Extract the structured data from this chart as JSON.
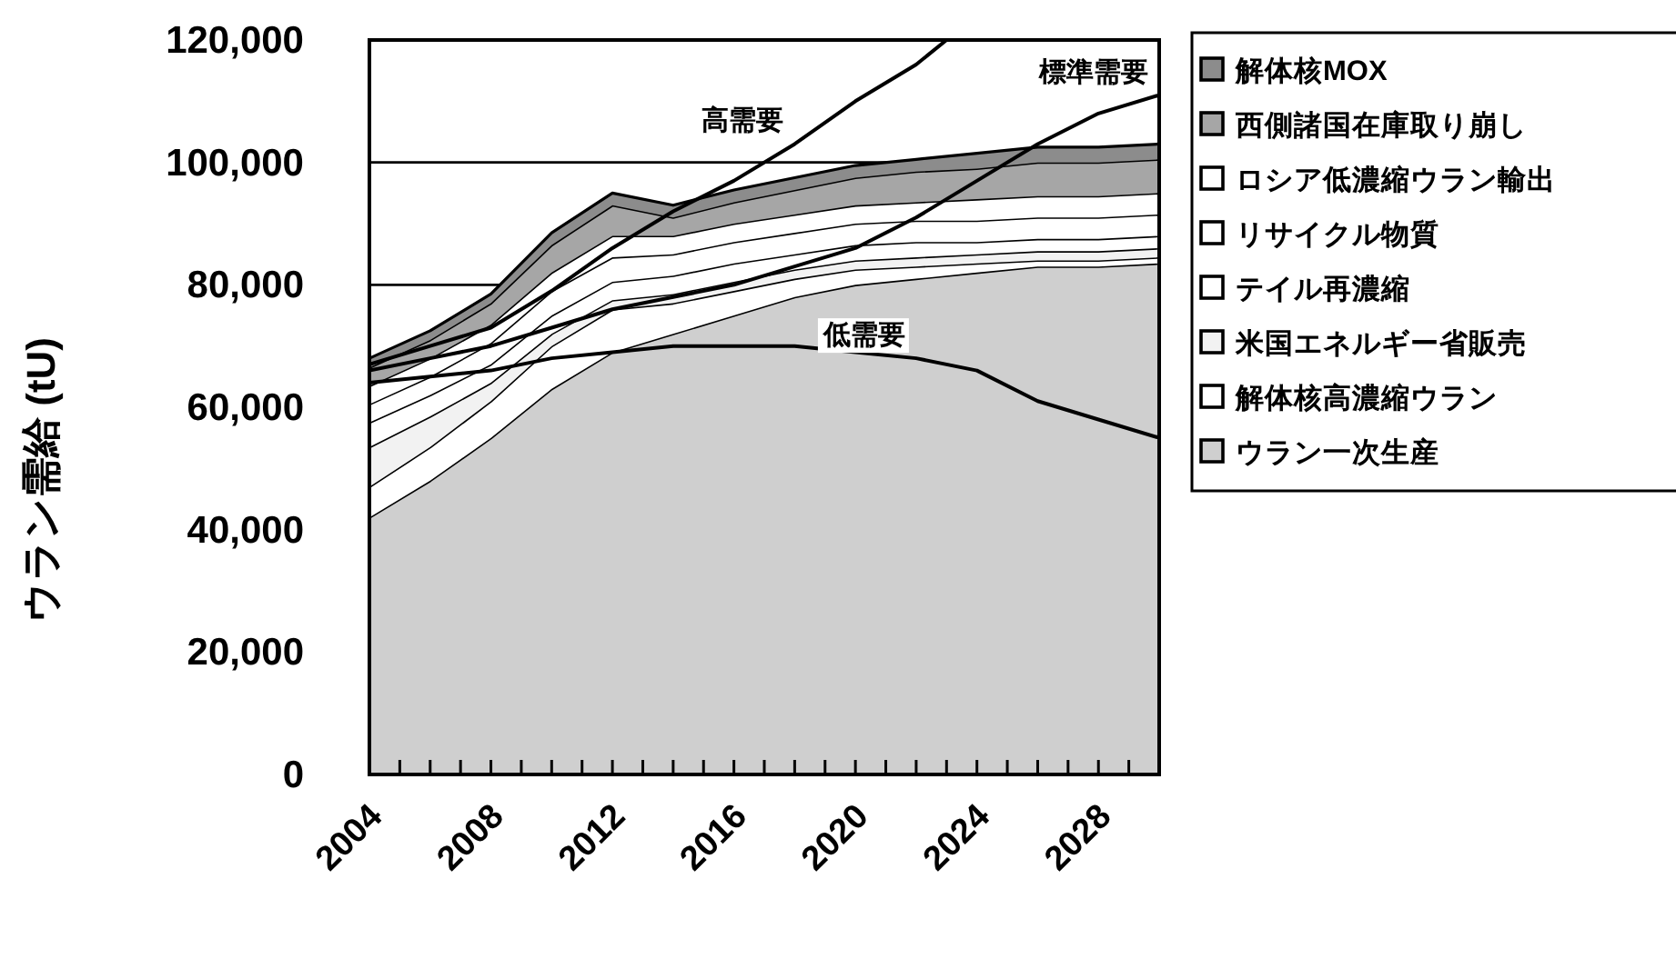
{
  "chart_data": {
    "type": "area",
    "stacked": true,
    "ylabel": "ウラン需給 (tU)",
    "grid": "y",
    "legend": "right",
    "xlim": [
      2004,
      2030
    ],
    "xticks": [
      {
        "value": 2004,
        "label": "2004"
      },
      {
        "value": 2005,
        "label": null
      },
      {
        "value": 2006,
        "label": null
      },
      {
        "value": 2007,
        "label": null
      },
      {
        "value": 2008,
        "label": "2008"
      },
      {
        "value": 2009,
        "label": null
      },
      {
        "value": 2010,
        "label": null
      },
      {
        "value": 2011,
        "label": null
      },
      {
        "value": 2012,
        "label": "2012"
      },
      {
        "value": 2013,
        "label": null
      },
      {
        "value": 2014,
        "label": null
      },
      {
        "value": 2015,
        "label": null
      },
      {
        "value": 2016,
        "label": "2016"
      },
      {
        "value": 2017,
        "label": null
      },
      {
        "value": 2018,
        "label": null
      },
      {
        "value": 2019,
        "label": null
      },
      {
        "value": 2020,
        "label": "2020"
      },
      {
        "value": 2021,
        "label": null
      },
      {
        "value": 2022,
        "label": null
      },
      {
        "value": 2023,
        "label": null
      },
      {
        "value": 2024,
        "label": "2024"
      },
      {
        "value": 2025,
        "label": null
      },
      {
        "value": 2026,
        "label": null
      },
      {
        "value": 2027,
        "label": null
      },
      {
        "value": 2028,
        "label": "2028"
      },
      {
        "value": 2029,
        "label": null
      },
      {
        "value": 2030,
        "label": null
      }
    ],
    "ylim": [
      0,
      120000
    ],
    "yticks": [
      0,
      {
        "value": 20000,
        "label": "20,000"
      },
      {
        "value": 40000,
        "label": "40,000"
      },
      {
        "value": 60000,
        "label": "60,000"
      },
      {
        "value": 80000,
        "label": "80,000"
      },
      {
        "value": 100000,
        "label": "100,000"
      },
      {
        "value": 120000,
        "label": "120,000"
      }
    ],
    "x": [
      2004,
      2006,
      2008,
      2010,
      2012,
      2014,
      2016,
      2018,
      2020,
      2022,
      2024,
      2026,
      2028,
      2030
    ],
    "series": [
      {
        "name": "ウラン一次生産",
        "color": "#cfcfcf",
        "values": [
          42000,
          48000,
          55000,
          63000,
          69000,
          72000,
          75000,
          78000,
          80000,
          81000,
          82000,
          83000,
          83000,
          83500
        ]
      },
      {
        "name": "解体核高濃縮ウラン",
        "color": "#ffffff",
        "values": [
          5000,
          5500,
          6000,
          7000,
          7000,
          5000,
          4000,
          3000,
          2500,
          2000,
          1500,
          1000,
          1000,
          1000
        ]
      },
      {
        "name": "米国エネルギー省販売",
        "color": "#f2f2f2",
        "values": [
          6500,
          5000,
          3000,
          2000,
          1500,
          1500,
          1500,
          1500,
          1500,
          1500,
          1500,
          1500,
          1500,
          1500
        ]
      },
      {
        "name": "テイル再濃縮",
        "color": "#ffffff",
        "values": [
          4000,
          3500,
          3000,
          3000,
          3000,
          3000,
          3000,
          2500,
          2500,
          2500,
          2000,
          2000,
          2000,
          2000
        ]
      },
      {
        "name": "リサイクル物質",
        "color": "#ffffff",
        "values": [
          3000,
          3000,
          3500,
          4000,
          4000,
          3500,
          3500,
          3500,
          3500,
          3500,
          3500,
          3500,
          3500,
          3500
        ]
      },
      {
        "name": "ロシア低濃縮ウラン輸出",
        "color": "#ffffff",
        "values": [
          3000,
          3000,
          3000,
          3000,
          3500,
          3000,
          3000,
          3000,
          3000,
          3000,
          3500,
          3500,
          3500,
          3500
        ]
      },
      {
        "name": "西側諸国在庫取り崩し",
        "color": "#a6a6a6",
        "values": [
          3000,
          3000,
          3500,
          4500,
          5000,
          3000,
          3500,
          4000,
          4500,
          5000,
          5000,
          5500,
          5500,
          5500
        ]
      },
      {
        "name": "解体核MOX",
        "color": "#8c8c8c",
        "values": [
          1500,
          1500,
          1500,
          2000,
          2000,
          2000,
          2000,
          2000,
          2000,
          2000,
          2500,
          2500,
          2500,
          2500
        ]
      },
      {
        "type": "line",
        "color": "#000000",
        "x": [
          2004,
          2006,
          2008,
          2010,
          2012,
          2014,
          2016,
          2018,
          2020,
          2022,
          2023
        ],
        "values": [
          67000,
          70000,
          73000,
          79000,
          86000,
          92000,
          97000,
          103000,
          110000,
          116000,
          120000
        ]
      },
      {
        "type": "line",
        "color": "#000000",
        "values": [
          66000,
          68000,
          70000,
          73000,
          76000,
          78000,
          80000,
          83000,
          86000,
          91000,
          97000,
          103000,
          108000,
          111000
        ]
      },
      {
        "type": "line",
        "color": "#000000",
        "values": [
          64000,
          65000,
          66000,
          68000,
          69000,
          70000,
          70000,
          70000,
          69000,
          68000,
          66000,
          61000,
          58000,
          55000
        ]
      }
    ],
    "annotations": [
      {
        "text": "高需要",
        "x": 2018,
        "y": 103000
      },
      {
        "text": "標準需要",
        "x": 2030,
        "y": 111000
      },
      {
        "text": "低需要",
        "x": 2022,
        "y": 68000
      }
    ]
  }
}
